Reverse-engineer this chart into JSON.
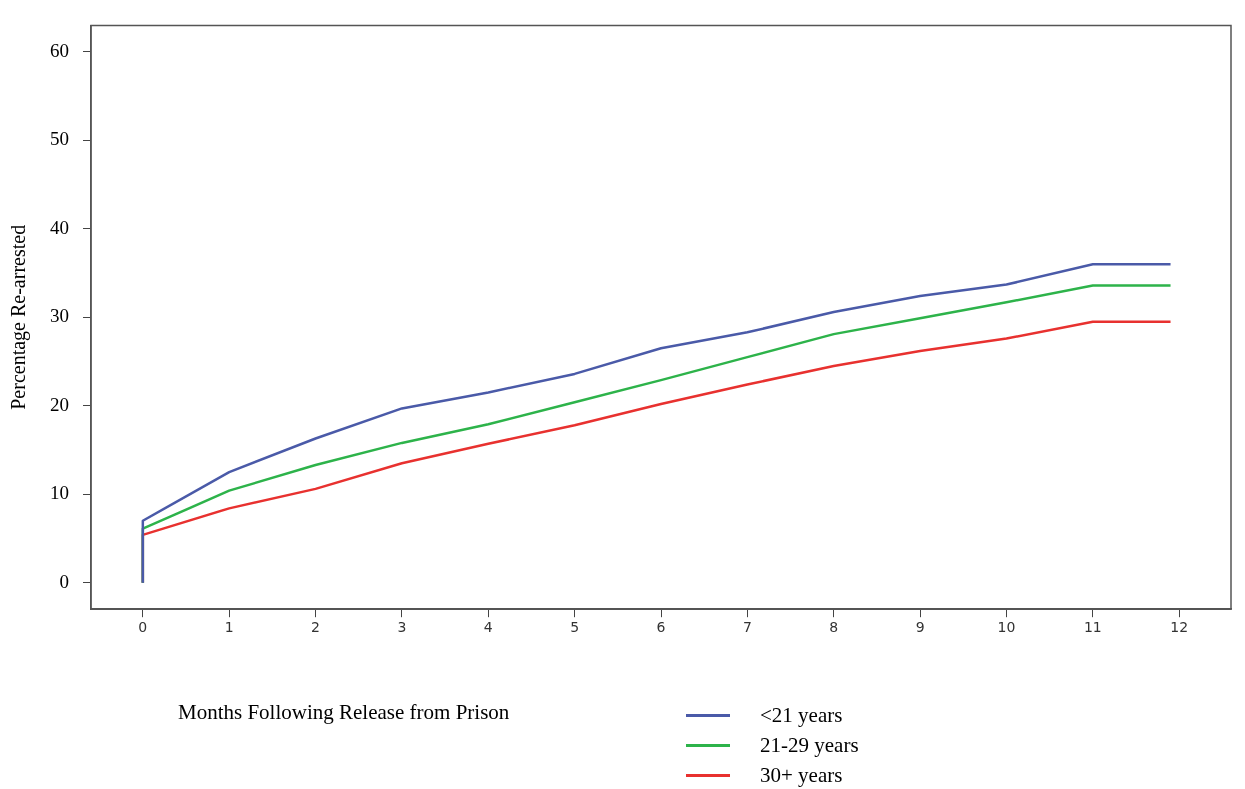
{
  "chart_data": {
    "type": "line",
    "xlabel": "Months Following Release from Prison",
    "ylabel": "Percentage Re-arrested",
    "xlim": [
      -0.6,
      12.6
    ],
    "ylim": [
      -3,
      63
    ],
    "xticks": [
      0,
      1,
      2,
      3,
      4,
      5,
      6,
      7,
      8,
      9,
      10,
      11,
      12
    ],
    "yticks": [
      0,
      10,
      20,
      30,
      40,
      50,
      60
    ],
    "grid": false,
    "legend": "bottom",
    "marker": "none",
    "line_style": "solid",
    "series": [
      {
        "name": "<21 years",
        "color": "#4a5aa8",
        "x": [
          0,
          0,
          1,
          2,
          3,
          4,
          5,
          6,
          7,
          8,
          9,
          10,
          11,
          11.9
        ],
        "values": [
          0,
          7.0,
          12.5,
          16.3,
          19.7,
          21.5,
          23.6,
          26.5,
          28.3,
          30.6,
          32.4,
          33.7,
          36.0,
          36.0
        ]
      },
      {
        "name": "21-29 years",
        "color": "#2db34a",
        "x": [
          0,
          0,
          1,
          2,
          3,
          4,
          5,
          6,
          7,
          8,
          9,
          10,
          11,
          11.9
        ],
        "values": [
          0,
          6.1,
          10.4,
          13.3,
          15.8,
          17.9,
          20.4,
          22.9,
          25.5,
          28.1,
          29.9,
          31.7,
          33.6,
          33.6
        ]
      },
      {
        "name": "30+ years",
        "color": "#e8312f",
        "x": [
          0,
          0,
          1,
          2,
          3,
          4,
          5,
          6,
          7,
          8,
          9,
          10,
          11,
          11.9
        ],
        "values": [
          0,
          5.4,
          8.4,
          10.6,
          13.5,
          15.7,
          17.8,
          20.2,
          22.4,
          24.5,
          26.2,
          27.6,
          29.5,
          29.5
        ]
      }
    ]
  }
}
